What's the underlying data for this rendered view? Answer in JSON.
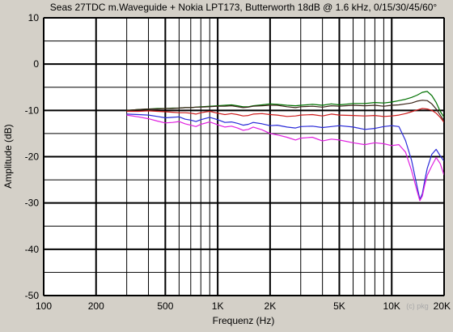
{
  "chart_data": {
    "type": "line",
    "title": "Seas 27TDC m.Waveguide + Nokia LPT173, Butterworth 18dB @ 1.6 kHz, 0/15/30/45/60°",
    "xlabel": "Frequenz (Hz)",
    "ylabel": "Amplitude (dB)",
    "watermark": "(c) pkg",
    "x_scale": "log",
    "xlim": [
      100,
      20000
    ],
    "ylim": [
      -50,
      10
    ],
    "grid": true,
    "background": "#ffffff",
    "x_ticks": [
      {
        "value": 100,
        "label": "100"
      },
      {
        "value": 200,
        "label": "200"
      },
      {
        "value": 500,
        "label": "500"
      },
      {
        "value": 1000,
        "label": "1K"
      },
      {
        "value": 2000,
        "label": "2K"
      },
      {
        "value": 5000,
        "label": "5K"
      },
      {
        "value": 10000,
        "label": "10K"
      },
      {
        "value": 20000,
        "label": "20K"
      }
    ],
    "y_ticks": [
      {
        "value": 10,
        "label": "10"
      },
      {
        "value": 0,
        "label": "0"
      },
      {
        "value": -10,
        "label": "-10"
      },
      {
        "value": -20,
        "label": "-20"
      },
      {
        "value": -30,
        "label": "-30"
      },
      {
        "value": -40,
        "label": "-40"
      },
      {
        "value": -50,
        "label": "-50"
      }
    ],
    "x_minor_grid": [
      300,
      400,
      600,
      700,
      800,
      900,
      3000,
      4000,
      6000,
      7000,
      8000,
      9000
    ],
    "y_minor_grid": [
      5,
      -5,
      -15,
      -25,
      -35,
      -45
    ],
    "series": [
      {
        "color": "#007000",
        "x": [
          300,
          350,
          400,
          450,
          500,
          550,
          600,
          650,
          700,
          750,
          800,
          900,
          1000,
          1100,
          1200,
          1300,
          1400,
          1500,
          1600,
          1800,
          2000,
          2200,
          2500,
          2800,
          3000,
          3500,
          4000,
          4500,
          5000,
          6000,
          7000,
          8000,
          9000,
          10000,
          11000,
          12000,
          13000,
          14000,
          15000,
          16000,
          17000,
          18000,
          19000,
          20000
        ],
        "y": [
          -10,
          -9.8,
          -9.7,
          -9.6,
          -9.6,
          -9.5,
          -9.5,
          -9.4,
          -9.4,
          -9.3,
          -9.2,
          -9.1,
          -9.0,
          -8.9,
          -8.8,
          -9.0,
          -9.2,
          -9.2,
          -9.0,
          -8.8,
          -8.6,
          -8.7,
          -8.9,
          -9.0,
          -8.9,
          -8.7,
          -8.9,
          -8.6,
          -8.8,
          -8.5,
          -8.5,
          -8.3,
          -8.4,
          -8.2,
          -7.9,
          -7.6,
          -7.2,
          -6.7,
          -6.1,
          -5.9,
          -6.8,
          -8.3,
          -10.2,
          -11.5
        ]
      },
      {
        "color": "#3a2418",
        "x": [
          300,
          350,
          400,
          450,
          500,
          550,
          600,
          650,
          700,
          750,
          800,
          900,
          1000,
          1100,
          1200,
          1300,
          1400,
          1500,
          1600,
          1800,
          2000,
          2200,
          2500,
          2800,
          3000,
          3500,
          4000,
          4500,
          5000,
          6000,
          7000,
          8000,
          9000,
          10000,
          11000,
          12000,
          13000,
          14000,
          15000,
          16000,
          17000,
          18000,
          19000,
          20000
        ],
        "y": [
          -10,
          -9.8,
          -9.7,
          -9.7,
          -9.6,
          -9.6,
          -9.5,
          -9.4,
          -9.4,
          -9.3,
          -9.3,
          -9.2,
          -9.1,
          -9.1,
          -9.0,
          -9.2,
          -9.4,
          -9.3,
          -9.1,
          -9.0,
          -8.9,
          -8.9,
          -9.2,
          -9.4,
          -9.2,
          -9.1,
          -9.3,
          -9.0,
          -9.1,
          -8.9,
          -9.0,
          -8.9,
          -9.1,
          -8.9,
          -8.8,
          -8.6,
          -8.4,
          -8.0,
          -7.8,
          -7.9,
          -8.6,
          -9.7,
          -11.0,
          -12.3
        ]
      },
      {
        "color": "#cc1a1a",
        "x": [
          300,
          350,
          400,
          450,
          500,
          550,
          600,
          650,
          700,
          750,
          800,
          900,
          1000,
          1100,
          1200,
          1300,
          1400,
          1500,
          1600,
          1800,
          2000,
          2200,
          2500,
          2800,
          3000,
          3500,
          4000,
          4500,
          5000,
          6000,
          7000,
          8000,
          9000,
          10000,
          11000,
          12000,
          13000,
          14000,
          15000,
          16000,
          17000,
          18000,
          19000,
          20000
        ],
        "y": [
          -10.2,
          -10.2,
          -10.1,
          -10.2,
          -10.3,
          -10.4,
          -10.5,
          -10.5,
          -10.6,
          -10.8,
          -10.5,
          -10.2,
          -10.6,
          -10.9,
          -10.7,
          -10.9,
          -11.2,
          -11.1,
          -10.8,
          -10.7,
          -10.9,
          -11.0,
          -11.3,
          -11.2,
          -11.0,
          -10.9,
          -11.2,
          -10.8,
          -11.0,
          -11.1,
          -11.2,
          -11.1,
          -11.3,
          -11.2,
          -11.0,
          -10.7,
          -10.3,
          -9.9,
          -9.6,
          -9.7,
          -10.0,
          -10.6,
          -11.5,
          -12.6
        ]
      },
      {
        "color": "#2a2ad8",
        "x": [
          300,
          350,
          400,
          450,
          500,
          550,
          600,
          650,
          700,
          750,
          800,
          900,
          1000,
          1100,
          1200,
          1300,
          1400,
          1500,
          1600,
          1800,
          2000,
          2200,
          2500,
          2800,
          3000,
          3500,
          4000,
          4500,
          5000,
          6000,
          7000,
          8000,
          9000,
          10000,
          11000,
          12000,
          13000,
          14000,
          14500,
          15000,
          15500,
          16000,
          17000,
          18000,
          19000,
          20000
        ],
        "y": [
          -10.8,
          -10.9,
          -11.0,
          -11.3,
          -11.6,
          -11.5,
          -11.4,
          -11.9,
          -12.1,
          -12.4,
          -12.0,
          -11.5,
          -12.0,
          -12.6,
          -12.5,
          -12.8,
          -13.2,
          -13.0,
          -12.6,
          -12.9,
          -13.3,
          -13.2,
          -13.6,
          -13.8,
          -13.5,
          -13.4,
          -13.7,
          -13.5,
          -13.3,
          -13.6,
          -14.1,
          -13.9,
          -13.5,
          -13.3,
          -13.5,
          -16.5,
          -20.8,
          -26.5,
          -29.2,
          -28.0,
          -25.0,
          -22.5,
          -19.5,
          -18.4,
          -19.8,
          -21.0
        ]
      },
      {
        "color": "#e020e0",
        "x": [
          300,
          350,
          400,
          450,
          500,
          550,
          600,
          650,
          700,
          750,
          800,
          900,
          1000,
          1100,
          1200,
          1300,
          1400,
          1500,
          1600,
          1800,
          2000,
          2200,
          2500,
          2800,
          3000,
          3500,
          4000,
          4500,
          5000,
          6000,
          7000,
          8000,
          9000,
          10000,
          11000,
          12000,
          13000,
          14000,
          14500,
          15000,
          15500,
          16000,
          17000,
          18000,
          19000,
          20000
        ],
        "y": [
          -11.0,
          -11.4,
          -11.8,
          -12.3,
          -12.7,
          -12.6,
          -12.4,
          -12.9,
          -13.2,
          -13.5,
          -13.0,
          -12.5,
          -13.1,
          -13.6,
          -13.4,
          -13.8,
          -14.3,
          -14.1,
          -13.6,
          -14.2,
          -15.0,
          -15.3,
          -15.8,
          -16.4,
          -16.0,
          -15.8,
          -16.6,
          -16.2,
          -16.4,
          -17.0,
          -17.4,
          -17.0,
          -17.2,
          -17.6,
          -17.4,
          -19.0,
          -23.0,
          -27.5,
          -29.5,
          -28.5,
          -26.0,
          -24.0,
          -22.0,
          -20.2,
          -21.5,
          -24.0
        ]
      }
    ]
  }
}
